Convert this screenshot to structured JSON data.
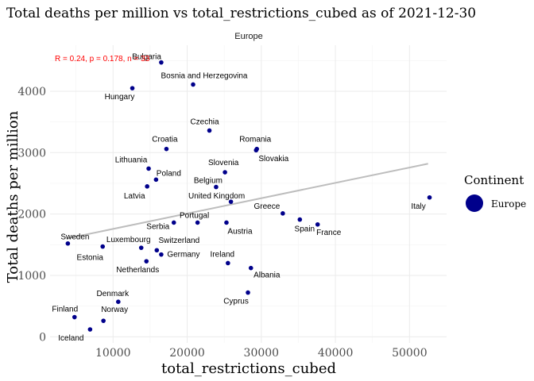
{
  "title": "Total deaths per million vs total_restrictions_cubed as of 2021-12-30",
  "facet": "Europe",
  "stat_annotation": "R = 0.24, p = 0.178, n = 33",
  "legend": {
    "title": "Continent",
    "entries": [
      "Europe"
    ]
  },
  "colors": {
    "points": "#00008b",
    "fit_line": "#bdbdbd",
    "stat": "#ff0000"
  },
  "chart_data": {
    "type": "scatter",
    "xlabel": "total_restrictions_cubed",
    "ylabel": "Total deaths per million",
    "xlim": [
      1500,
      55000
    ],
    "ylim": [
      -100,
      4750
    ],
    "x_ticks": [
      10000,
      20000,
      30000,
      40000,
      50000
    ],
    "x_tick_labels": [
      "10000",
      "20000",
      "30000",
      "40000",
      "50000"
    ],
    "y_ticks": [
      0,
      1000,
      2000,
      3000,
      4000
    ],
    "y_tick_labels": [
      "0",
      "1000",
      "2000",
      "3000",
      "4000"
    ],
    "grid": true,
    "legend_position": "right",
    "trend_line": {
      "x": [
        3700,
        52500
      ],
      "y": [
        1600,
        2820
      ]
    },
    "points": [
      {
        "label": "Bulgaria",
        "x": 16500,
        "y": 4470
      },
      {
        "label": "Bosnia and Herzegovina",
        "x": 20800,
        "y": 4110
      },
      {
        "label": "Hungary",
        "x": 12600,
        "y": 4050
      },
      {
        "label": "Czechia",
        "x": 23000,
        "y": 3360
      },
      {
        "label": "Romania",
        "x": 29400,
        "y": 3060
      },
      {
        "label": "Croatia",
        "x": 17200,
        "y": 3060
      },
      {
        "label": "Slovakia",
        "x": 29300,
        "y": 3040
      },
      {
        "label": "Lithuania",
        "x": 14800,
        "y": 2740
      },
      {
        "label": "Slovenia",
        "x": 25100,
        "y": 2680
      },
      {
        "label": "Poland",
        "x": 15800,
        "y": 2560
      },
      {
        "label": "Belgium",
        "x": 23900,
        "y": 2440
      },
      {
        "label": "Latvia",
        "x": 14600,
        "y": 2450
      },
      {
        "label": "Italy",
        "x": 52700,
        "y": 2270
      },
      {
        "label": "United Kingdom",
        "x": 25900,
        "y": 2200
      },
      {
        "label": "Greece",
        "x": 32900,
        "y": 2010
      },
      {
        "label": "Portugal",
        "x": 21400,
        "y": 1860
      },
      {
        "label": "Serbia",
        "x": 18200,
        "y": 1860
      },
      {
        "label": "Spain",
        "x": 35200,
        "y": 1910
      },
      {
        "label": "France",
        "x": 37600,
        "y": 1830
      },
      {
        "label": "Austria",
        "x": 25300,
        "y": 1860
      },
      {
        "label": "Sweden",
        "x": 3900,
        "y": 1520
      },
      {
        "label": "Luxembourg",
        "x": 13800,
        "y": 1450
      },
      {
        "label": "Estonia",
        "x": 8600,
        "y": 1470
      },
      {
        "label": "Switzerland",
        "x": 15900,
        "y": 1410
      },
      {
        "label": "Germany",
        "x": 16500,
        "y": 1340
      },
      {
        "label": "Netherlands",
        "x": 14500,
        "y": 1230
      },
      {
        "label": "Ireland",
        "x": 25500,
        "y": 1200
      },
      {
        "label": "Albania",
        "x": 28600,
        "y": 1120
      },
      {
        "label": "Cyprus",
        "x": 28200,
        "y": 720
      },
      {
        "label": "Denmark",
        "x": 10700,
        "y": 570
      },
      {
        "label": "Finland",
        "x": 4800,
        "y": 320
      },
      {
        "label": "Norway",
        "x": 8700,
        "y": 260
      },
      {
        "label": "Iceland",
        "x": 6900,
        "y": 120
      }
    ]
  }
}
